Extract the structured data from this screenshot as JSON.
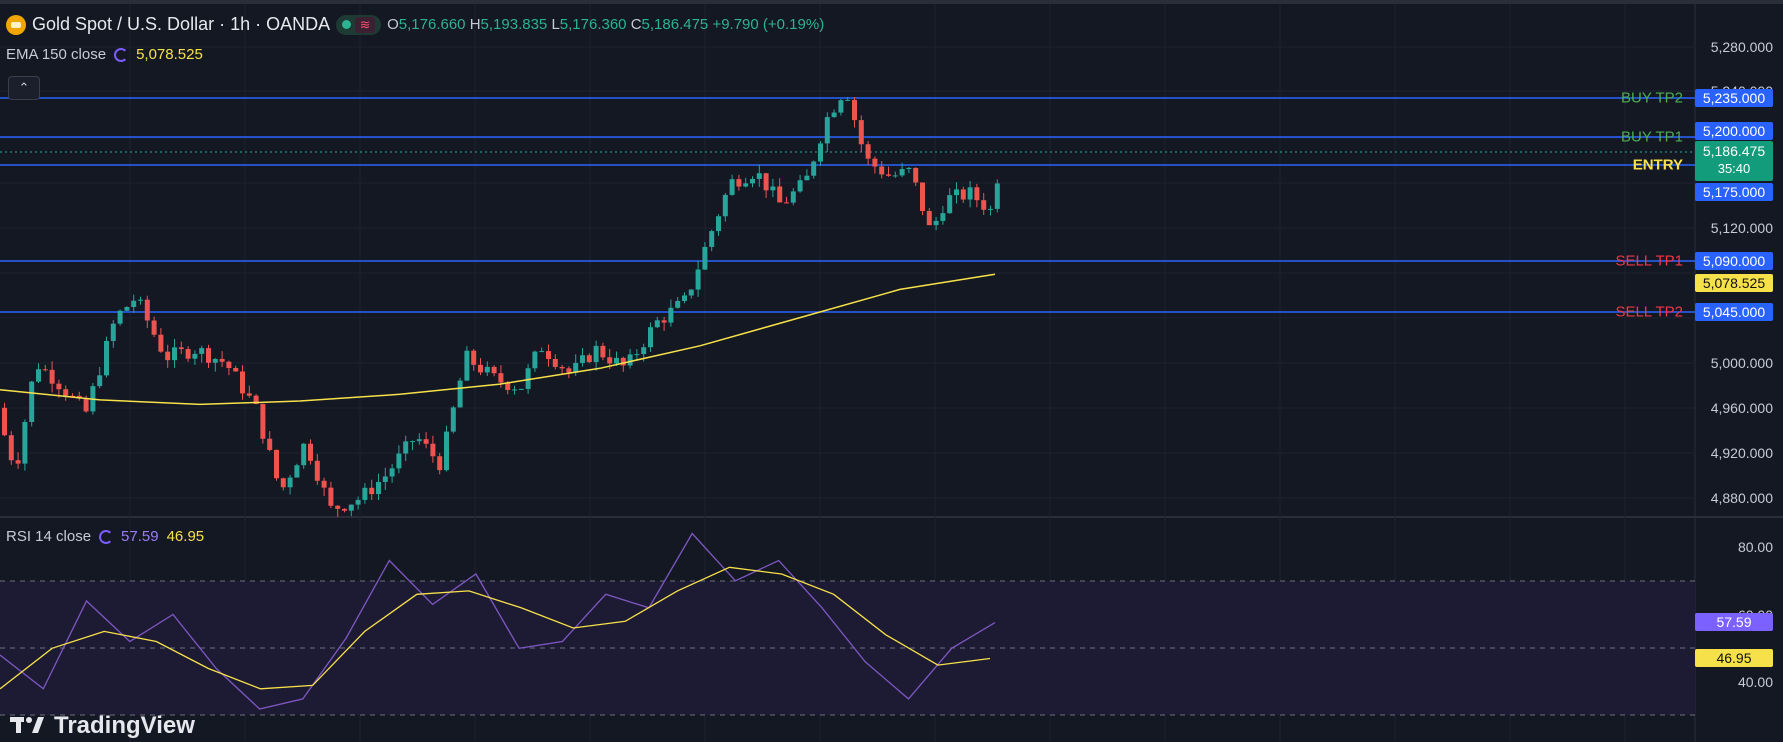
{
  "header": {
    "title": "Gold Spot / U.S. Dollar · 1h · OANDA",
    "open_label": "O",
    "open": "5,176.660",
    "high_label": "H",
    "high": "5,193.835",
    "low_label": "L",
    "low": "5,176.360",
    "close_label": "C",
    "close": "5,186.475",
    "change": "+9.790 (+0.19%)",
    "status_icon": "wave-icon"
  },
  "ema": {
    "label": "EMA 150 close",
    "value": "5,078.525"
  },
  "rsi": {
    "label": "RSI 14 close",
    "value1": "57.59",
    "value2": "46.95"
  },
  "price_axis": [
    "5,280.000",
    "5,240.000",
    "5,120.000",
    "5,000.000",
    "4,960.000",
    "4,920.000",
    "4,880.000"
  ],
  "rsi_axis": [
    "80.00",
    "60.00",
    "40.00"
  ],
  "levels": [
    {
      "name": "BUY TP2",
      "price": "5,235.000",
      "color": "#4caf50"
    },
    {
      "name": "BUY TP1",
      "price": "5,200.000",
      "color": "#4caf50"
    },
    {
      "name": "ENTRY",
      "price": "5,175.000",
      "color": "#f7e14a"
    },
    {
      "name": "SELL TP1",
      "price": "5,090.000",
      "color": "#f23645"
    },
    {
      "name": "SELL TP2",
      "price": "5,045.000",
      "color": "#f23645"
    }
  ],
  "current_price": {
    "price": "5,186.475",
    "countdown": "35:40"
  },
  "ema_tag": "5,078.525",
  "rsi_tags": {
    "rsi": "57.59",
    "ma": "46.95"
  },
  "brand": "TradingView",
  "colors": {
    "up": "#26a69a",
    "down": "#ef5350",
    "ema": "#f7e14a",
    "rsi_line": "#7e57c2",
    "rsi_ma": "#f7e14a",
    "level_line": "#2962ff"
  },
  "chart_data": {
    "type": "candlestick",
    "ema_series": [
      4976,
      4967,
      4963,
      4966,
      4972,
      4981,
      4995,
      5015,
      5040,
      5065,
      5078.525
    ],
    "rsi_series": [
      48,
      38,
      64,
      52,
      60,
      44,
      32,
      35,
      53,
      76,
      63,
      72,
      50,
      52,
      66,
      62,
      84,
      70,
      76,
      62,
      46,
      35,
      50,
      57.59
    ],
    "rsi_ma_series": [
      38,
      50,
      55,
      52,
      44,
      38,
      39,
      55,
      66,
      67,
      62,
      56,
      58,
      67,
      74,
      72,
      66,
      54,
      45,
      46.95
    ],
    "ylim": [
      4860,
      5300
    ]
  }
}
